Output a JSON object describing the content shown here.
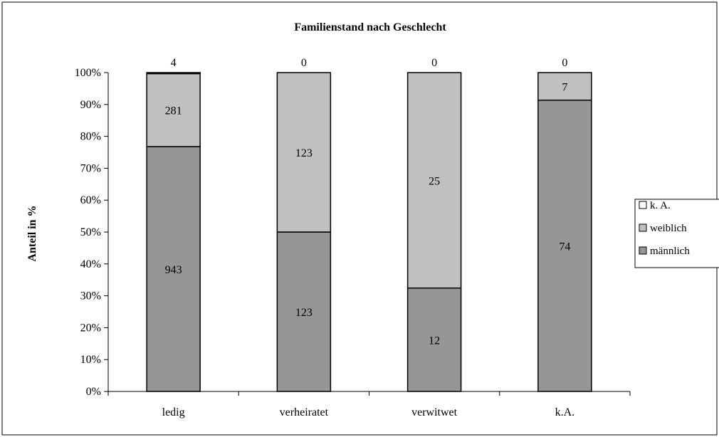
{
  "chart_data": {
    "type": "bar",
    "stacked": "percent",
    "title": "Familienstand nach Geschlecht",
    "xlabel": "",
    "ylabel": "Anteil in %",
    "ylim": [
      0,
      100
    ],
    "yticks": [
      "0%",
      "10%",
      "20%",
      "30%",
      "40%",
      "50%",
      "60%",
      "70%",
      "80%",
      "90%",
      "100%"
    ],
    "categories": [
      "ledig",
      "verheiratet",
      "verwitwet",
      "k.A."
    ],
    "series": [
      {
        "name": "männlich",
        "values": [
          943,
          123,
          12,
          74
        ],
        "color": "#969696"
      },
      {
        "name": "weiblich",
        "values": [
          281,
          123,
          25,
          7
        ],
        "color": "#c0c0c0"
      },
      {
        "name": "k. A.",
        "values": [
          4,
          0,
          0,
          0
        ],
        "color": "#ffffff"
      }
    ],
    "legend_position": "right",
    "grid": false
  }
}
